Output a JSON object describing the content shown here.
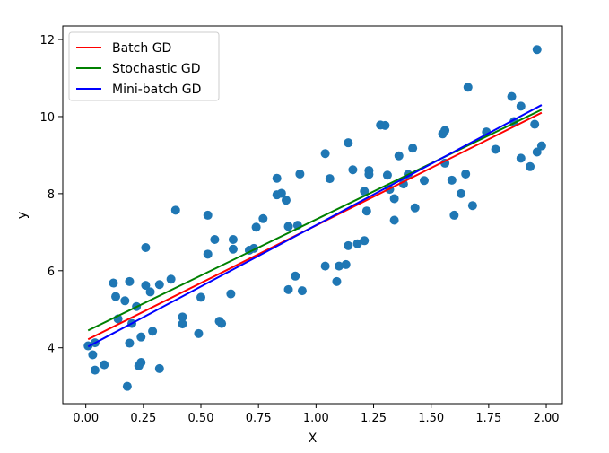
{
  "chart_data": {
    "type": "scatter",
    "title": "",
    "xlabel": "X",
    "ylabel": "y",
    "xlim": [
      -0.1,
      2.07
    ],
    "ylim": [
      2.55,
      12.35
    ],
    "xticks": [
      0.0,
      0.25,
      0.5,
      0.75,
      1.0,
      1.25,
      1.5,
      1.75,
      2.0
    ],
    "xtick_labels": [
      "0.00",
      "0.25",
      "0.50",
      "0.75",
      "1.00",
      "1.25",
      "1.50",
      "1.75",
      "2.00"
    ],
    "yticks": [
      4,
      6,
      8,
      10,
      12
    ],
    "ytick_labels": [
      "4",
      "6",
      "8",
      "10",
      "12"
    ],
    "grid": false,
    "legend_position": "top-left",
    "scatter": {
      "color": "#1f77b4",
      "x": [
        0.01,
        0.04,
        0.04,
        0.08,
        0.03,
        0.12,
        0.13,
        0.17,
        0.14,
        0.19,
        0.22,
        0.2,
        0.19,
        0.18,
        0.24,
        0.24,
        0.23,
        0.26,
        0.26,
        0.28,
        0.32,
        0.29,
        0.32,
        0.37,
        0.39,
        0.42,
        0.42,
        0.5,
        0.49,
        0.53,
        0.53,
        0.56,
        0.58,
        0.59,
        0.64,
        0.64,
        0.63,
        0.71,
        0.73,
        0.74,
        0.77,
        0.83,
        0.83,
        0.85,
        0.87,
        0.88,
        0.91,
        0.88,
        0.93,
        0.92,
        0.94,
        1.04,
        1.06,
        1.04,
        1.09,
        1.1,
        1.13,
        1.14,
        1.14,
        1.16,
        1.18,
        1.21,
        1.21,
        1.23,
        1.23,
        1.22,
        1.28,
        1.3,
        1.31,
        1.32,
        1.34,
        1.34,
        1.36,
        1.38,
        1.4,
        1.42,
        1.43,
        1.47,
        1.55,
        1.56,
        1.56,
        1.6,
        1.59,
        1.63,
        1.65,
        1.68,
        1.66,
        1.74,
        1.78,
        1.85,
        1.86,
        1.89,
        1.89,
        1.93,
        1.95,
        1.96,
        1.96,
        1.98
      ],
      "y": [
        4.05,
        4.13,
        3.42,
        3.56,
        3.82,
        5.68,
        5.33,
        5.22,
        4.75,
        5.72,
        5.07,
        4.63,
        4.12,
        3.0,
        4.28,
        3.62,
        3.53,
        6.6,
        5.62,
        5.45,
        5.64,
        4.43,
        3.46,
        5.78,
        7.57,
        4.8,
        4.62,
        5.31,
        4.37,
        7.44,
        6.43,
        6.81,
        4.69,
        4.63,
        6.81,
        6.56,
        5.4,
        6.53,
        6.58,
        7.13,
        7.35,
        8.4,
        7.97,
        8.01,
        7.83,
        7.15,
        5.86,
        5.51,
        8.51,
        7.18,
        5.48,
        9.04,
        8.39,
        6.12,
        5.72,
        6.12,
        6.16,
        9.32,
        6.65,
        8.62,
        6.7,
        8.06,
        6.78,
        8.6,
        8.5,
        7.55,
        9.78,
        9.77,
        8.48,
        8.11,
        7.31,
        7.87,
        8.98,
        8.25,
        8.5,
        9.18,
        7.63,
        8.34,
        9.55,
        9.64,
        8.79,
        7.44,
        8.35,
        8.0,
        8.51,
        7.69,
        10.76,
        9.6,
        9.15,
        10.52,
        9.87,
        10.27,
        8.92,
        8.7,
        9.8,
        11.74,
        9.08,
        9.24
      ],
      "name": ""
    },
    "series": [
      {
        "name": "Batch GD",
        "color": "#ff0000",
        "x": [
          0.01,
          1.98
        ],
        "y": [
          4.22,
          10.1
        ]
      },
      {
        "name": "Stochastic GD",
        "color": "#008000",
        "x": [
          0.01,
          1.98
        ],
        "y": [
          4.45,
          10.18
        ]
      },
      {
        "name": "Mini-batch GD",
        "color": "#0000ff",
        "x": [
          0.01,
          1.98
        ],
        "y": [
          4.03,
          10.3
        ]
      }
    ]
  }
}
